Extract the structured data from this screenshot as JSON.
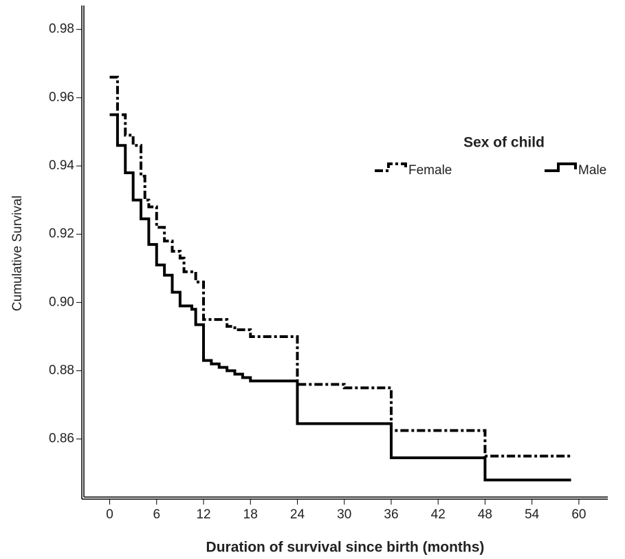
{
  "chart_data": {
    "type": "step",
    "x_label": "Duration of survival since birth (months)",
    "y_label": "Cumulative Survival",
    "legend_title": "Sex of child",
    "legend_position": "upper right",
    "xlim": [
      -3.3,
      63.7
    ],
    "ylim": [
      0.843,
      0.987
    ],
    "xticks": [
      0,
      6,
      12,
      18,
      24,
      30,
      36,
      42,
      48,
      54,
      60
    ],
    "yticks": [
      0.86,
      0.88,
      {
        "value": 0.9,
        "label": "0.90"
      },
      0.92,
      0.94,
      0.96,
      0.98
    ],
    "series": [
      {
        "name": "Female",
        "color": "#000000",
        "dash": "dashdot",
        "x": [
          0,
          1,
          2,
          3,
          4,
          4.5,
          5,
          6,
          7,
          8,
          9,
          9.5,
          11,
          12,
          15,
          16,
          18,
          24,
          30,
          36,
          48,
          59
        ],
        "values": [
          0.966,
          0.955,
          0.949,
          0.946,
          0.937,
          0.93,
          0.928,
          0.922,
          0.918,
          0.915,
          0.913,
          0.909,
          0.906,
          0.895,
          0.893,
          0.892,
          0.89,
          0.876,
          0.875,
          0.8625,
          0.855,
          0.855
        ]
      },
      {
        "name": "Male",
        "color": "#000000",
        "dash": "solid",
        "x": [
          0,
          1,
          2,
          3,
          4,
          5,
          6,
          7,
          8,
          9,
          10.5,
          11,
          12,
          13,
          14,
          15,
          16,
          17,
          18,
          24,
          36,
          48,
          59
        ],
        "values": [
          0.955,
          0.946,
          0.938,
          0.93,
          0.9245,
          0.917,
          0.911,
          0.908,
          0.903,
          0.899,
          0.898,
          0.8935,
          0.883,
          0.882,
          0.881,
          0.88,
          0.879,
          0.878,
          0.877,
          0.8645,
          0.8545,
          0.848,
          0.848
        ]
      }
    ]
  }
}
